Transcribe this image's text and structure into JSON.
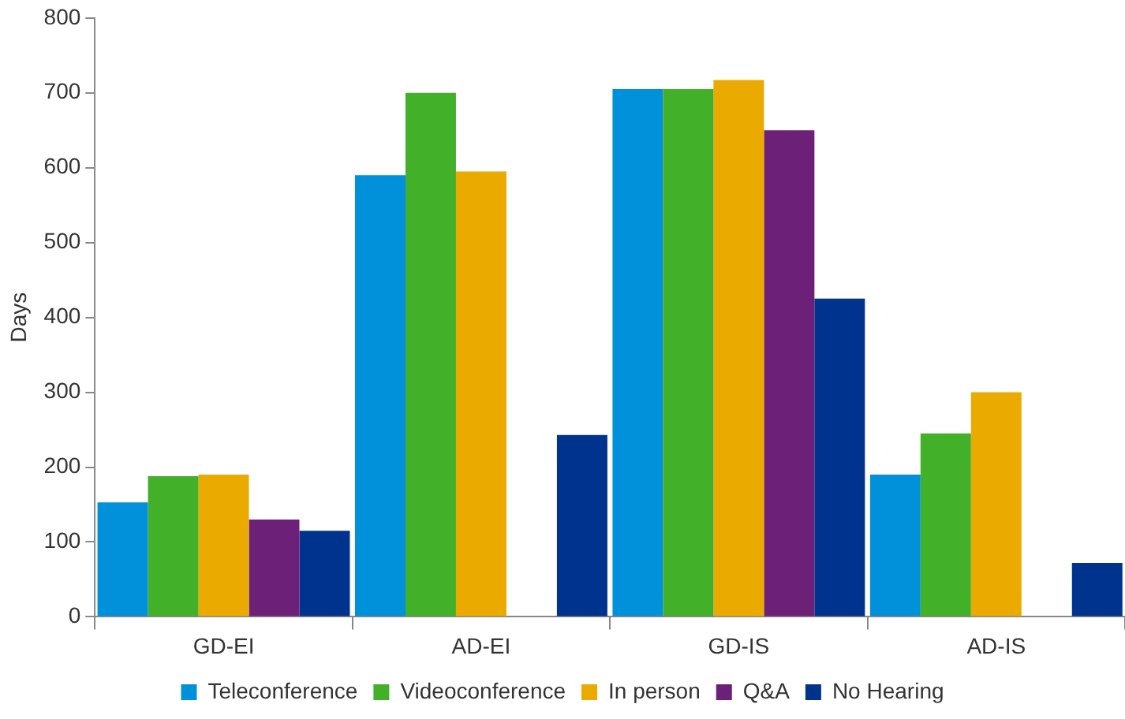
{
  "chart_data": {
    "type": "bar",
    "ylabel": "Days",
    "categories": [
      "GD-EI",
      "AD-EI",
      "GD-IS",
      "AD-IS"
    ],
    "series": [
      {
        "name": "Teleconference",
        "color": "#0091da",
        "values": [
          153,
          590,
          705,
          190
        ]
      },
      {
        "name": "Videoconference",
        "color": "#43b02a",
        "values": [
          188,
          700,
          705,
          245
        ]
      },
      {
        "name": "In person",
        "color": "#eaaa00",
        "values": [
          190,
          595,
          717,
          300
        ]
      },
      {
        "name": "Q&A",
        "color": "#6d2077",
        "values": [
          130,
          null,
          650,
          null
        ]
      },
      {
        "name": "No Hearing",
        "color": "#00338d",
        "values": [
          115,
          243,
          425,
          72
        ]
      }
    ],
    "ylim": [
      0,
      800
    ],
    "yticks": [
      0,
      100,
      200,
      300,
      400,
      500,
      600,
      700,
      800
    ],
    "grid": false,
    "legend": "bottom"
  }
}
